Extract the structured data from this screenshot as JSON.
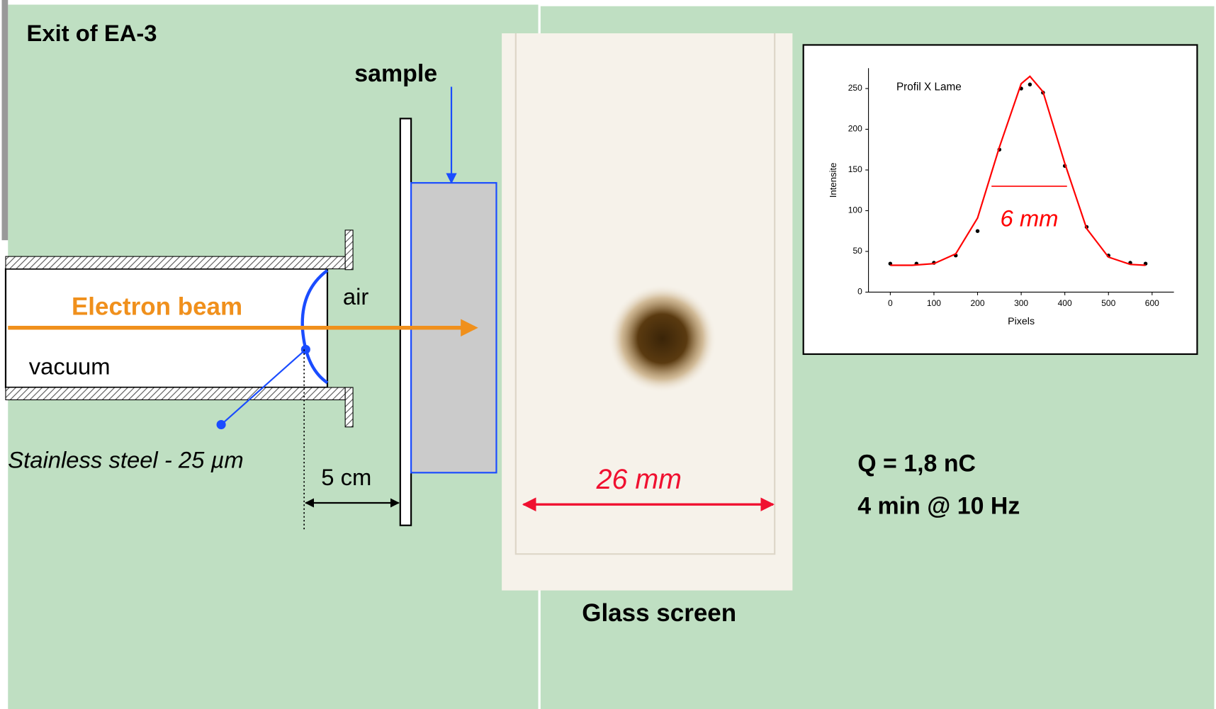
{
  "header": {
    "title": "Exit of EA-3"
  },
  "diagram": {
    "sample_label": "sample",
    "beam_label": "Electron beam",
    "vacuum_label": "vacuum",
    "air_label": "air",
    "window_label": "Stainless steel - 25 µm",
    "distance_label": "5 cm"
  },
  "photo": {
    "width_label": "26 mm",
    "caption": "Glass screen"
  },
  "conditions": [
    "Q = 1,8 nC",
    "4 min @ 10 Hz"
  ],
  "chart_data": {
    "type": "line",
    "title": "Profil X Lame",
    "x_label": "Pixels",
    "y_label": "Intensite",
    "annotation": "6 mm",
    "xlim": [
      -50,
      650
    ],
    "ylim": [
      0,
      275
    ],
    "xticks": [
      0,
      100,
      200,
      300,
      400,
      500,
      600
    ],
    "yticks": [
      0,
      50,
      100,
      150,
      200,
      250
    ],
    "series": [
      {
        "color": "#000000",
        "marker": "dot",
        "x": [
          0,
          60,
          100,
          150,
          200,
          250,
          300,
          320,
          350,
          400,
          450,
          500,
          550,
          585
        ],
        "values": [
          35,
          35,
          36,
          45,
          75,
          175,
          250,
          255,
          245,
          155,
          80,
          45,
          36,
          35
        ]
      },
      {
        "color": "#ff0000",
        "marker": "line",
        "x": [
          0,
          50,
          100,
          150,
          200,
          250,
          300,
          320,
          350,
          400,
          450,
          500,
          550,
          585
        ],
        "values": [
          33,
          33,
          35,
          47,
          91,
          178,
          256,
          265,
          246,
          158,
          78,
          43,
          34,
          33
        ]
      }
    ],
    "fwhm": {
      "x": [
        232,
        405
      ],
      "value": 130,
      "color": "#ff0000"
    }
  }
}
